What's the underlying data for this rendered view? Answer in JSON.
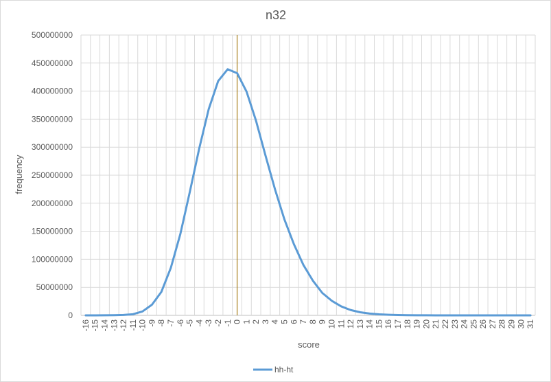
{
  "chart_data": {
    "type": "line",
    "title": "n32",
    "xlabel": "score",
    "ylabel": "frequency",
    "categories": [
      "-16",
      "-15",
      "-14",
      "-13",
      "-12",
      "-11",
      "-10",
      "-9",
      "-8",
      "-7",
      "-6",
      "-5",
      "-4",
      "-3",
      "-2",
      "-1",
      "0",
      "1",
      "2",
      "3",
      "4",
      "5",
      "6",
      "7",
      "8",
      "9",
      "10",
      "11",
      "12",
      "13",
      "14",
      "15",
      "16",
      "17",
      "18",
      "19",
      "20",
      "21",
      "22",
      "23",
      "24",
      "25",
      "26",
      "27",
      "28",
      "29",
      "30",
      "31"
    ],
    "ylim": [
      0,
      500000000
    ],
    "yticks": [
      "0",
      "50000000",
      "100000000",
      "150000000",
      "200000000",
      "250000000",
      "300000000",
      "350000000",
      "400000000",
      "450000000",
      "500000000"
    ],
    "grid": true,
    "legend_position": "bottom",
    "reference_line_x": "0",
    "series": [
      {
        "name": "hh-ht",
        "color": "#5b9bd5",
        "values": [
          0,
          0,
          100000,
          300000,
          800000,
          2000000,
          7000000,
          19000000,
          42000000,
          85000000,
          145000000,
          220000000,
          298000000,
          368000000,
          418000000,
          439000000,
          432000000,
          399000000,
          347000000,
          285000000,
          225000000,
          171000000,
          127000000,
          90000000,
          62000000,
          40000000,
          26000000,
          16000000,
          9500000,
          5500000,
          3200000,
          1800000,
          1000000,
          550000,
          300000,
          150000,
          80000,
          40000,
          20000,
          10000,
          5000,
          0,
          0,
          0,
          0,
          0,
          0,
          0
        ]
      }
    ],
    "reference_line_color": "#a57b16",
    "axis_color": "#bfbfbf",
    "grid_color": "#d9d9d9"
  }
}
